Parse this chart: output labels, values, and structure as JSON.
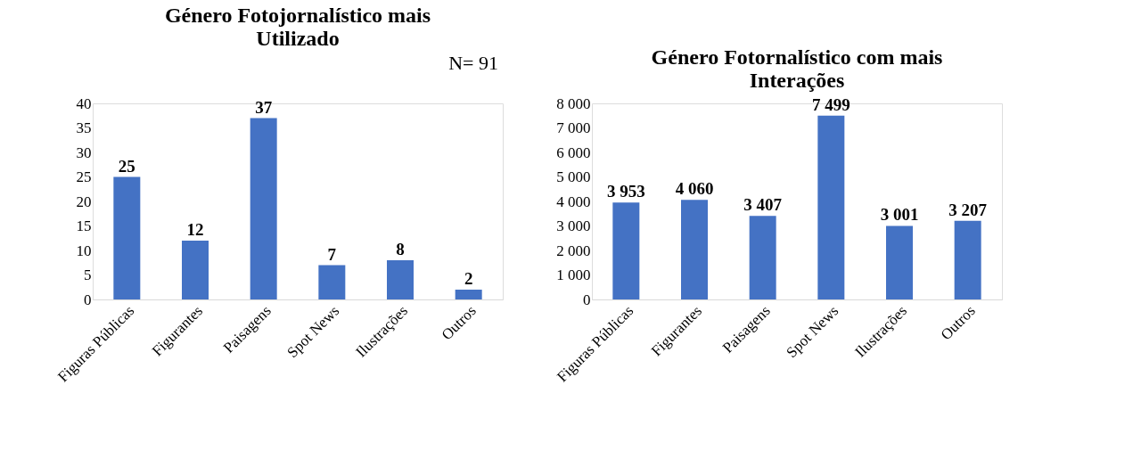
{
  "chart_data": [
    {
      "type": "bar",
      "title": "Género Fotojornalístico mais Utilizado",
      "categories": [
        "Figuras Públicas",
        "Figurantes",
        "Paisagens",
        "Spot News",
        "Ilustrações",
        "Outros"
      ],
      "series": [
        {
          "color": "#4472c4",
          "values": [
            25,
            12,
            37,
            7,
            8,
            2
          ]
        }
      ],
      "ylim": [
        0,
        40
      ],
      "yticks": [
        0,
        5,
        10,
        15,
        20,
        25,
        30,
        35,
        40
      ],
      "data_labels": true,
      "annotations": [
        "N= 91"
      ]
    },
    {
      "type": "bar",
      "title": "Género Fotornalístico com mais Interações",
      "categories": [
        "Figuras Públicas",
        "Figurantes",
        "Paisagens",
        "Spot News",
        "Ilustrações",
        "Outros"
      ],
      "series": [
        {
          "color": "#4472c4",
          "values": [
            3953,
            4060,
            3407,
            7499,
            3001,
            3207
          ],
          "value_labels": [
            "3 953",
            "4 060",
            "3 407",
            "7 499",
            "3 001",
            "3 207"
          ]
        }
      ],
      "ylim": [
        0,
        8000
      ],
      "yticks": [
        {
          "value": 0,
          "label": "0"
        },
        {
          "value": 1000,
          "label": "1 000"
        },
        {
          "value": 2000,
          "label": "2 000"
        },
        {
          "value": 3000,
          "label": "3 000"
        },
        {
          "value": 4000,
          "label": "4 000"
        },
        {
          "value": 5000,
          "label": "5 000"
        },
        {
          "value": 6000,
          "label": "6 000"
        },
        {
          "value": 7000,
          "label": "7 000"
        },
        {
          "value": 8000,
          "label": "8 000"
        }
      ]
    }
  ]
}
